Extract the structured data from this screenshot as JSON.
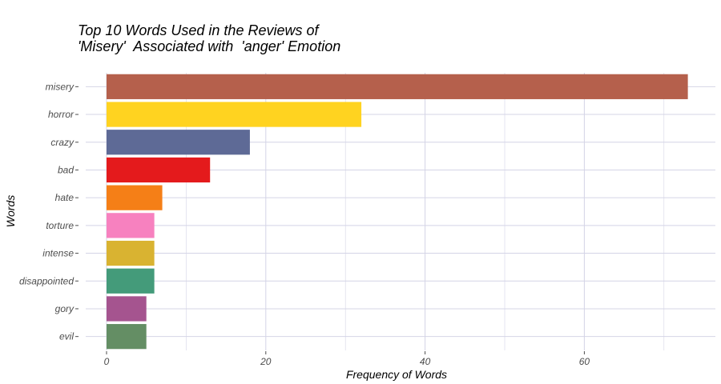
{
  "chart_data": {
    "type": "bar",
    "orientation": "horizontal",
    "title_lines": [
      "Top 10 Words Used in the Reviews of",
      "'Misery'  Associated with  'anger' Emotion"
    ],
    "xlabel": "Frequency of Words",
    "ylabel": "Words",
    "categories": [
      "misery",
      "horror",
      "crazy",
      "bad",
      "hate",
      "torture",
      "intense",
      "disappointed",
      "gory",
      "evil"
    ],
    "values": [
      73,
      32,
      18,
      13,
      7,
      6,
      6,
      6,
      5,
      5
    ],
    "colors": [
      "#B5604C",
      "#FFD320",
      "#5E6A96",
      "#E41A1C",
      "#F57F17",
      "#F781BF",
      "#D9B331",
      "#449B7A",
      "#A5548F",
      "#648E64"
    ],
    "xlim": [
      0,
      76
    ],
    "xticks": [
      0,
      20,
      40,
      60
    ],
    "xtick_labels": [
      "0",
      "20",
      "40",
      "60"
    ],
    "grid": true,
    "grid_color": "#D4D4E6",
    "legend": "none"
  }
}
